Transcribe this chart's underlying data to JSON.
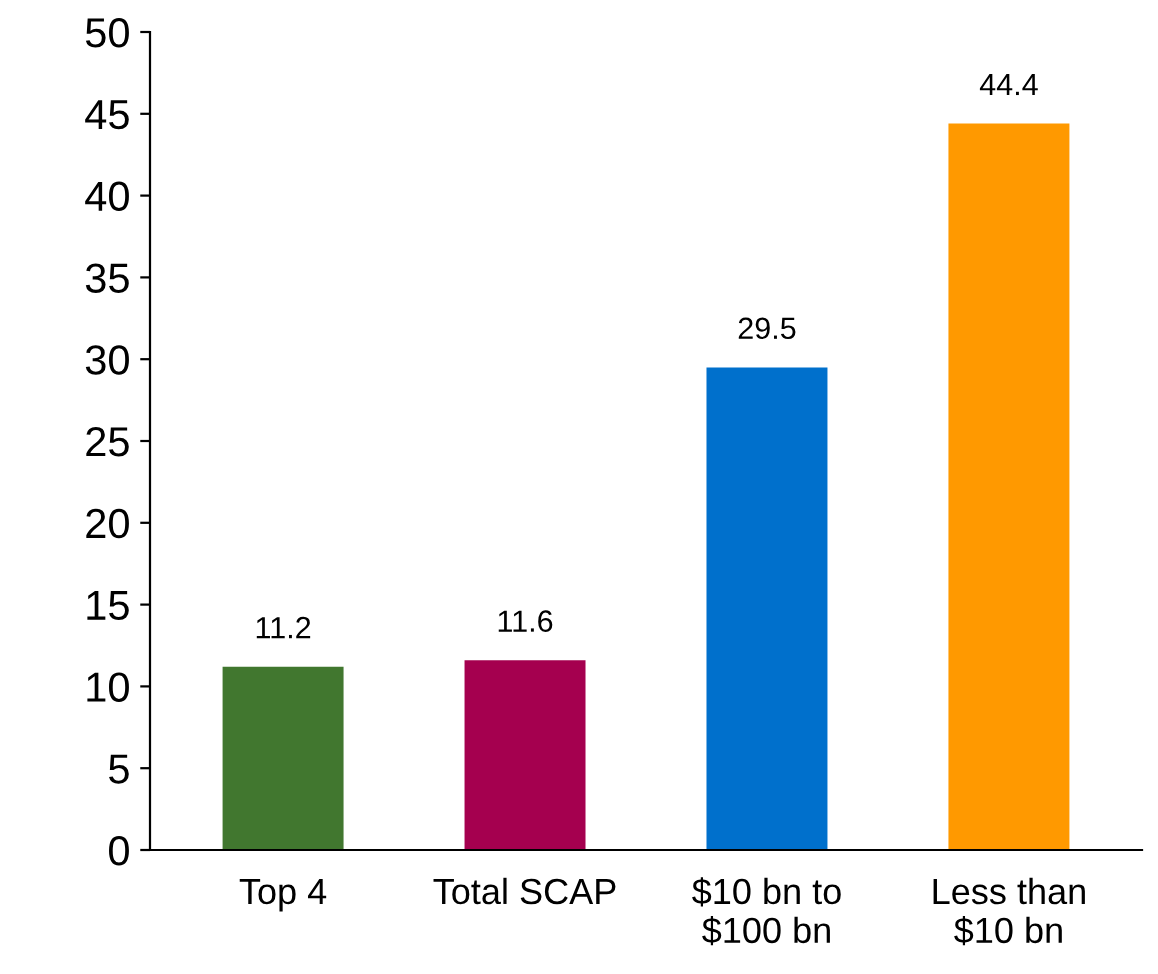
{
  "chart_data": {
    "type": "bar",
    "categories": [
      "Top 4",
      "Total SCAP",
      "$10 bn to\n$100 bn",
      "Less than\n$10 bn"
    ],
    "values": [
      11.2,
      11.6,
      29.5,
      44.4
    ],
    "colors": [
      "#41772f",
      "#a5004f",
      "#0070cc",
      "#ff9900"
    ],
    "ylim": [
      0,
      50
    ],
    "yticks": [
      0,
      5,
      10,
      15,
      20,
      25,
      30,
      35,
      40,
      45,
      50
    ],
    "grid": false,
    "data_labels": true
  }
}
